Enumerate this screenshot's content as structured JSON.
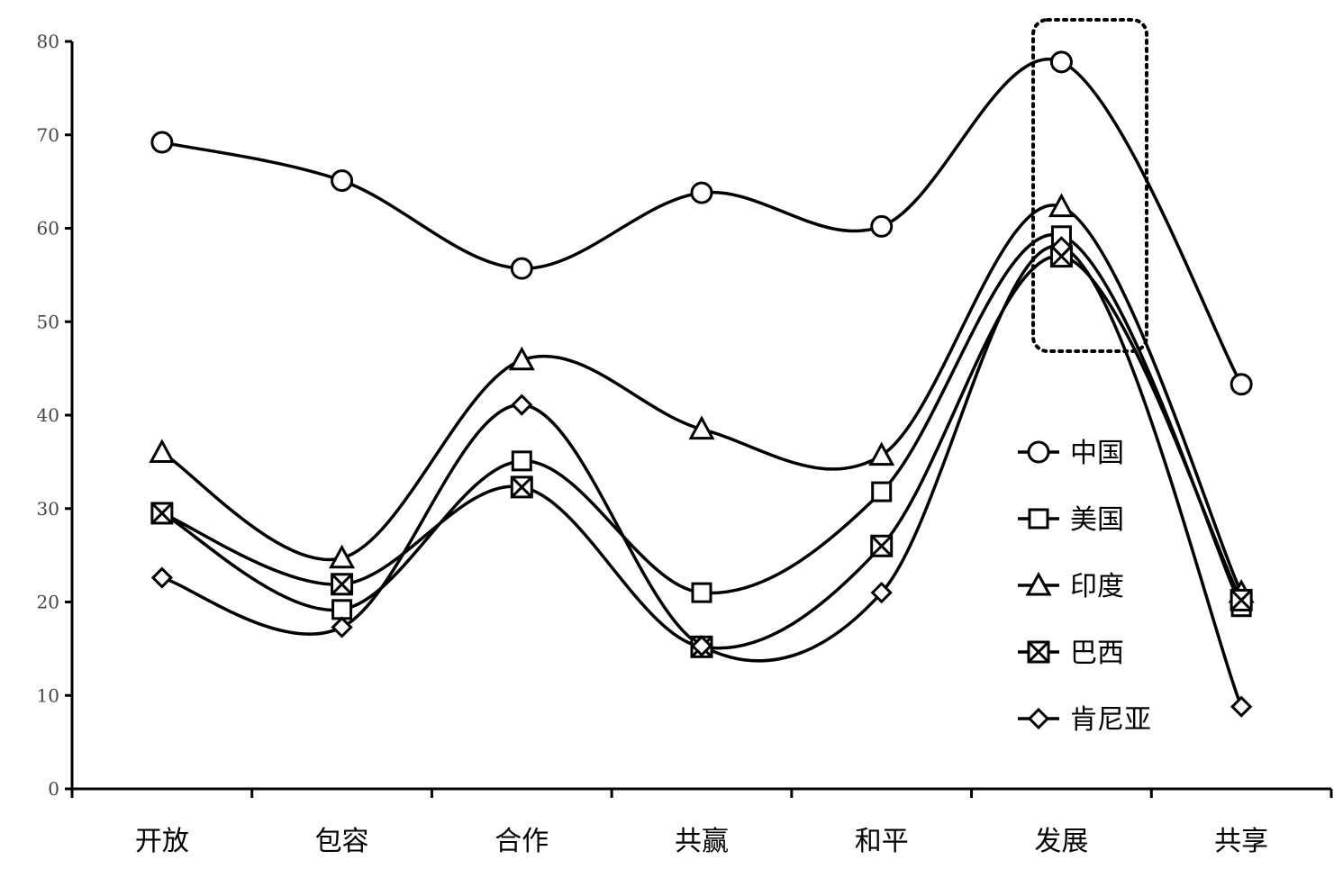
{
  "chart_data": {
    "type": "line",
    "categories": [
      "开放",
      "包容",
      "合作",
      "共赢",
      "和平",
      "发展",
      "共享"
    ],
    "y_ticks": [
      "0",
      "10",
      "20",
      "30",
      "40",
      "50",
      "60",
      "70",
      "80"
    ],
    "ylim": [
      0,
      80
    ],
    "smooth": true,
    "grid": false,
    "legend_position": "right",
    "highlight_category": "发展",
    "series": [
      {
        "name": "中国",
        "marker": "circle",
        "values": [
          69.2,
          65.1,
          55.7,
          63.8,
          60.2,
          77.8,
          43.3
        ]
      },
      {
        "name": "美国",
        "marker": "square",
        "values": [
          29.5,
          19.2,
          35.1,
          21.0,
          31.8,
          59.2,
          19.5
        ]
      },
      {
        "name": "印度",
        "marker": "triangle",
        "values": [
          36.0,
          24.7,
          45.9,
          38.5,
          35.7,
          62.3,
          21.0
        ]
      },
      {
        "name": "巴西",
        "marker": "square-x",
        "values": [
          29.5,
          21.9,
          32.3,
          15.2,
          26.0,
          57.0,
          20.2
        ]
      },
      {
        "name": "肯尼亚",
        "marker": "diamond",
        "values": [
          22.6,
          17.3,
          41.1,
          15.3,
          21.0,
          58.0,
          8.8
        ]
      }
    ]
  }
}
